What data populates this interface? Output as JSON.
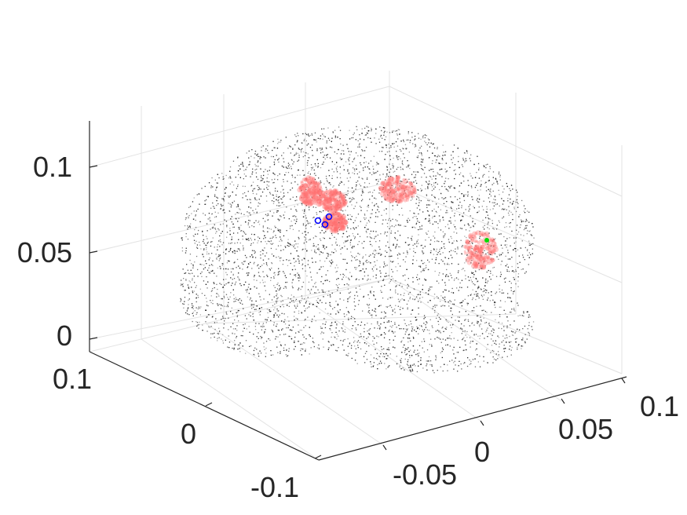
{
  "chart_data": {
    "type": "scatter3d",
    "title": "",
    "xlabel": "",
    "ylabel": "",
    "zlabel": "",
    "grid": true,
    "xlim": [
      -0.1,
      0.1
    ],
    "ylim": [
      -0.1,
      0.1
    ],
    "zlim": [
      0,
      0.12
    ],
    "x_ticks": [
      "-0.1",
      "0"
    ],
    "y_ticks": [
      "-0.05",
      "0",
      "0.05",
      "0.1"
    ],
    "z_ticks": [
      "0",
      "0.05",
      "0.1"
    ],
    "colors": {
      "point_cloud": "#1a1a1a",
      "activation": "#ff7070",
      "circle_markers": "#0000ff",
      "dot_marker": "#00dd00",
      "axis": "#262626",
      "grid": "#e3e3e3"
    },
    "series": [
      {
        "marker": "dot",
        "color": "#1a1a1a",
        "description_shape": "dense point cloud"
      },
      {
        "marker": "circle",
        "color": "#0000ff",
        "points": 3
      },
      {
        "marker": "filled-dot",
        "color": "#00dd00",
        "points": 1
      }
    ]
  }
}
